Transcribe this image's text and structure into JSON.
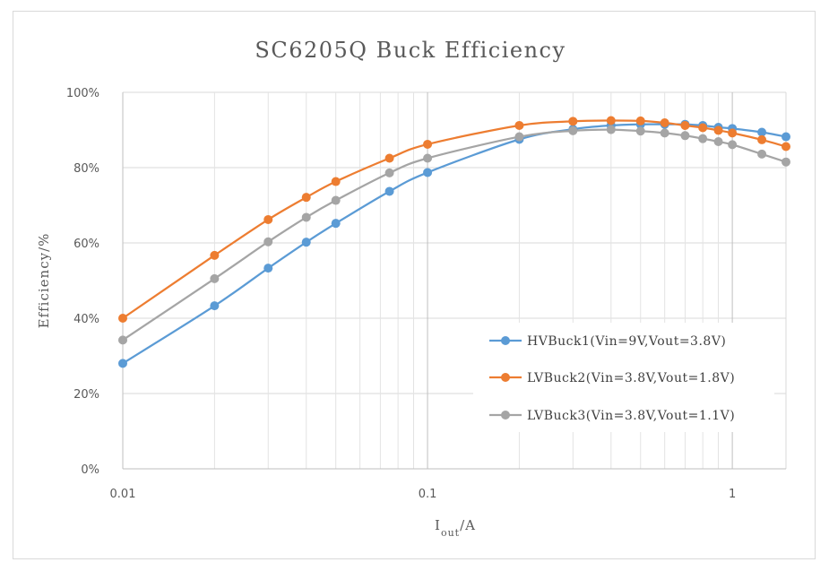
{
  "chart_data": {
    "type": "line",
    "title": "SC6205Q Buck Efficiency",
    "xlabel": {
      "main": "I",
      "subscript": "out",
      "suffix": "/A"
    },
    "ylabel": "Efficiency/%",
    "xscale": "log",
    "xlim": [
      0.01,
      1.5
    ],
    "ylim": [
      0,
      100
    ],
    "x_ticks": [
      0.01,
      0.1,
      1
    ],
    "x_tick_labels": [
      "0.01",
      "0.1",
      "1"
    ],
    "y_ticks": [
      0,
      20,
      40,
      60,
      80,
      100
    ],
    "y_tick_labels": [
      "0%",
      "20%",
      "40%",
      "60%",
      "80%",
      "100%"
    ],
    "legend_position": "center-right",
    "x": [
      0.01,
      0.02,
      0.03,
      0.04,
      0.05,
      0.075,
      0.1,
      0.2,
      0.3,
      0.4,
      0.5,
      0.6,
      0.7,
      0.8,
      0.9,
      1.0,
      1.25,
      1.5
    ],
    "series": [
      {
        "name": "HVBuck1(Vin=9V,Vout=3.8V)",
        "color": "#5b9bd5",
        "values": [
          28,
          43.3,
          53.3,
          60.2,
          65.2,
          73.7,
          78.7,
          87.5,
          90.2,
          91.2,
          91.5,
          91.5,
          91.5,
          91.2,
          90.7,
          90.4,
          89.4,
          88.2
        ]
      },
      {
        "name": "LVBuck2(Vin=3.8V,Vout=1.8V)",
        "color": "#ed7d31",
        "values": [
          40,
          56.7,
          66.2,
          72.1,
          76.3,
          82.5,
          86.2,
          91.2,
          92.3,
          92.5,
          92.4,
          91.9,
          91.2,
          90.6,
          89.9,
          89.2,
          87.4,
          85.6
        ]
      },
      {
        "name": "LVBuck3(Vin=3.8V,Vout=1.1V)",
        "color": "#a5a5a5",
        "values": [
          34.2,
          50.5,
          60.3,
          66.8,
          71.3,
          78.6,
          82.5,
          88.2,
          89.8,
          90.1,
          89.7,
          89.2,
          88.5,
          87.7,
          86.9,
          86.1,
          83.6,
          81.5
        ]
      }
    ]
  }
}
